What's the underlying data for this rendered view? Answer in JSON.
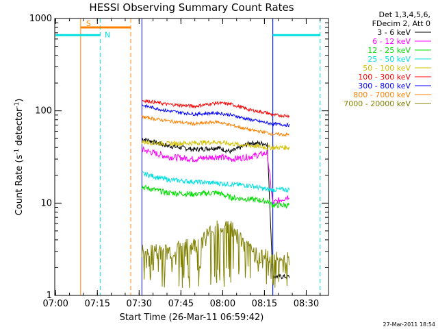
{
  "chart_data": {
    "type": "line",
    "title": "HESSI Observing Summary Count Rates",
    "xlabel": "Start Time (26-Mar-11 06:59:42)",
    "ylabel_main": "Count Rate (s",
    "ylabel_sup1": "-1",
    "ylabel_mid": " detector",
    "ylabel_sup2": "-1",
    "ylabel_end": ")",
    "y_scale": "log",
    "ylim": [
      1,
      1000
    ],
    "xlim": [
      "06:59:42",
      "08:38:00"
    ],
    "x_ticks": [
      "07:00",
      "07:15",
      "07:30",
      "07:45",
      "08:00",
      "08:15",
      "08:30"
    ],
    "y_ticks": [
      "1",
      "10",
      "100",
      "1000"
    ],
    "legend_header": [
      "Det 1,3,4,5,6,",
      "FDecim 2, Att 0"
    ],
    "legend_position": "top-right outside plot",
    "timestamp": "27-Mar-2011 18:54",
    "series": [
      {
        "name": "3 - 6 keV",
        "color": "#000000",
        "x": [
          "07:31",
          "07:40",
          "07:50",
          "07:58",
          "08:03",
          "08:10",
          "08:16",
          "08:18",
          "08:24"
        ],
        "values": [
          50,
          42,
          38,
          40,
          36,
          45,
          44,
          1.6,
          1.6
        ]
      },
      {
        "name": "6 - 12 keV",
        "color": "#ff00ff",
        "x": [
          "07:31",
          "07:40",
          "07:50",
          "07:58",
          "08:03",
          "08:10",
          "08:16",
          "08:18",
          "08:24"
        ],
        "values": [
          38,
          32,
          30,
          32,
          30,
          32,
          35,
          10,
          12
        ]
      },
      {
        "name": "12 - 25 keV",
        "color": "#00dd00",
        "x": [
          "07:31",
          "07:40",
          "07:50",
          "07:58",
          "08:03",
          "08:10",
          "08:16",
          "08:18",
          "08:24"
        ],
        "values": [
          15,
          13,
          12.5,
          13,
          11.5,
          11,
          10.5,
          9.5,
          9.5
        ]
      },
      {
        "name": "25 - 50 keV",
        "color": "#00e0e0",
        "x": [
          "07:31",
          "07:40",
          "07:50",
          "07:58",
          "08:03",
          "08:10",
          "08:16",
          "08:18",
          "08:24"
        ],
        "values": [
          21,
          18,
          17,
          16.5,
          16,
          15.5,
          14,
          14,
          14
        ]
      },
      {
        "name": "50 - 100 keV",
        "color": "#d4c000",
        "x": [
          "07:31",
          "07:40",
          "07:50",
          "07:58",
          "08:03",
          "08:10",
          "08:16",
          "08:18",
          "08:24"
        ],
        "values": [
          46,
          44,
          45,
          46,
          44,
          42,
          40,
          40,
          40
        ]
      },
      {
        "name": "100 - 300 keV",
        "color": "#ff0000",
        "x": [
          "07:31",
          "07:40",
          "07:50",
          "07:58",
          "08:03",
          "08:10",
          "08:16",
          "08:18",
          "08:24"
        ],
        "values": [
          130,
          118,
          112,
          122,
          118,
          102,
          95,
          90,
          88
        ]
      },
      {
        "name": "300 - 800 keV",
        "color": "#0000ff",
        "x": [
          "07:31",
          "07:40",
          "07:50",
          "07:58",
          "08:03",
          "08:10",
          "08:16",
          "08:18",
          "08:24"
        ],
        "values": [
          115,
          100,
          92,
          95,
          90,
          80,
          74,
          72,
          70
        ]
      },
      {
        "name": "800 - 7000 keV",
        "color": "#ff8000",
        "x": [
          "07:31",
          "07:40",
          "07:50",
          "07:58",
          "08:03",
          "08:10",
          "08:16",
          "08:18",
          "08:24"
        ],
        "values": [
          86,
          78,
          72,
          76,
          70,
          62,
          58,
          56,
          55
        ]
      },
      {
        "name": "7000 - 20000 keV",
        "color": "#808000",
        "x": [
          "07:31",
          "07:40",
          "07:50",
          "07:58",
          "08:03",
          "08:10",
          "08:16",
          "08:18",
          "08:24"
        ],
        "values": [
          3,
          3,
          3.5,
          5.5,
          5.5,
          3,
          2.6,
          2.5,
          2.5
        ]
      }
    ],
    "annotations": [
      {
        "label": "S",
        "color": "#ff8000",
        "x_start": "07:09",
        "x_end": "07:27",
        "level": 800
      },
      {
        "label": "N",
        "color": "#00e0e0",
        "x_start": "06:59:42",
        "x_end": "07:16",
        "level": 660
      },
      {
        "label": "",
        "color": "#00e0e0",
        "x_start": "08:18",
        "x_end": "08:35",
        "level": 660
      }
    ],
    "vertical_markers": [
      {
        "x": "07:09",
        "color": "#ff8000",
        "style": "solid"
      },
      {
        "x": "07:27",
        "color": "#ff8000",
        "style": "dashed"
      },
      {
        "x": "07:16",
        "color": "#00e0e0",
        "style": "dashed"
      },
      {
        "x": "08:18",
        "color": "#00e0e0",
        "style": "solid"
      },
      {
        "x": "08:35",
        "color": "#00e0e0",
        "style": "dashed"
      },
      {
        "x": "07:31",
        "color": "#0000ff",
        "style": "solid"
      },
      {
        "x": "08:18",
        "color": "#0000ff",
        "style": "solid"
      }
    ]
  }
}
